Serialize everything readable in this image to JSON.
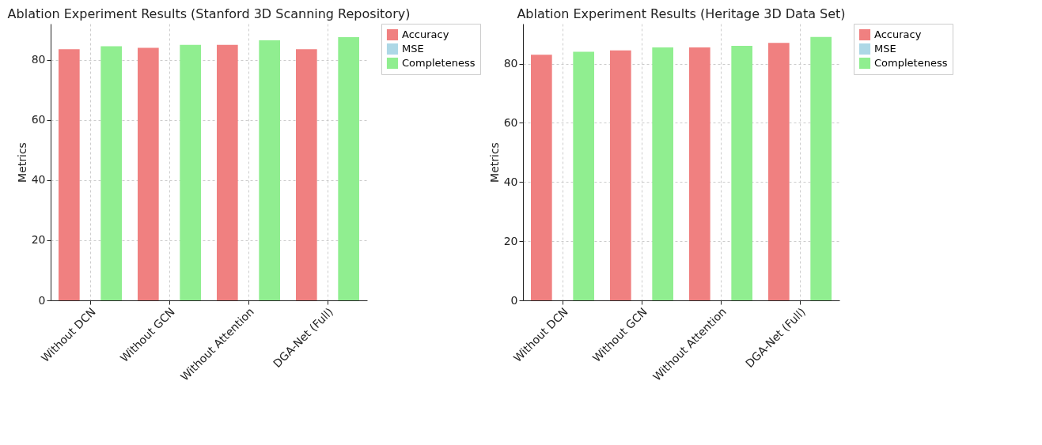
{
  "chart_data": [
    {
      "type": "bar",
      "title": "Ablation Experiment Results (Stanford 3D Scanning Repository)",
      "ylabel": "Metrics",
      "categories": [
        "Without DCN",
        "Without GCN",
        "Without Attention",
        "DGA-Net (Full)"
      ],
      "series": [
        {
          "name": "Accuracy",
          "color": "#f08080",
          "values": [
            83.5,
            84,
            85,
            83.5
          ]
        },
        {
          "name": "MSE",
          "color": "#add8e6",
          "values": [
            0,
            0,
            0,
            0
          ]
        },
        {
          "name": "Completeness",
          "color": "#90ee90",
          "values": [
            84.5,
            85,
            86.5,
            87.5
          ]
        }
      ],
      "ylim": [
        0,
        92
      ],
      "yticks": [
        0,
        20,
        40,
        60,
        80
      ],
      "grid": true,
      "legend": "top right"
    },
    {
      "type": "bar",
      "title": "Ablation Experiment Results (Heritage 3D Data Set)",
      "ylabel": "Metrics",
      "categories": [
        "Without DCN",
        "Without GCN",
        "Without Attention",
        "DGA-Net (Full)"
      ],
      "series": [
        {
          "name": "Accuracy",
          "color": "#f08080",
          "values": [
            83,
            84.5,
            85.5,
            87
          ]
        },
        {
          "name": "MSE",
          "color": "#add8e6",
          "values": [
            0,
            0,
            0,
            0
          ]
        },
        {
          "name": "Completeness",
          "color": "#90ee90",
          "values": [
            84,
            85.5,
            86,
            89
          ]
        }
      ],
      "ylim": [
        0,
        93.5
      ],
      "yticks": [
        0,
        20,
        40,
        60,
        80
      ],
      "grid": true,
      "legend": "top right"
    }
  ]
}
